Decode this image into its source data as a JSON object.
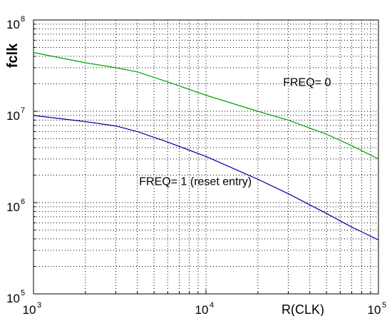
{
  "chart_data": {
    "type": "line",
    "xlabel": "R(CLK)",
    "ylabel": "fclk",
    "xscale": "log",
    "yscale": "log",
    "xlim": [
      1000,
      100000
    ],
    "ylim": [
      100000,
      100000000
    ],
    "grid": true,
    "x_ticks": [
      {
        "base": "10",
        "exp": "3"
      },
      {
        "base": "10",
        "exp": "4"
      },
      {
        "base": "10",
        "exp": "5"
      }
    ],
    "y_ticks": [
      {
        "base": "10",
        "exp": "5"
      },
      {
        "base": "10",
        "exp": "6"
      },
      {
        "base": "10",
        "exp": "7"
      },
      {
        "base": "10",
        "exp": "8"
      }
    ],
    "series": [
      {
        "color": "#00a000",
        "points": [
          [
            1000,
            44000000
          ],
          [
            2000,
            34000000
          ],
          [
            3000,
            30000000
          ],
          [
            4000,
            27000000
          ],
          [
            6000,
            21000000
          ],
          [
            10000,
            15000000
          ],
          [
            20000,
            10000000
          ],
          [
            30000,
            8000000
          ],
          [
            50000,
            5600000
          ],
          [
            70000,
            4200000
          ],
          [
            100000,
            3000000
          ]
        ]
      },
      {
        "color": "#0000a0",
        "points": [
          [
            1000,
            9000000
          ],
          [
            2000,
            7700000
          ],
          [
            3000,
            6900000
          ],
          [
            4000,
            6000000
          ],
          [
            6000,
            4600000
          ],
          [
            10000,
            3200000
          ],
          [
            20000,
            1800000
          ],
          [
            30000,
            1250000
          ],
          [
            50000,
            760000
          ],
          [
            70000,
            540000
          ],
          [
            100000,
            390000
          ]
        ]
      }
    ],
    "annotations": [
      {
        "text": "FREQ= 0",
        "x": 28000,
        "y": 19000000
      },
      {
        "text": "FREQ= 1 (reset entry)",
        "x": 4100,
        "y": 1550000
      }
    ]
  }
}
